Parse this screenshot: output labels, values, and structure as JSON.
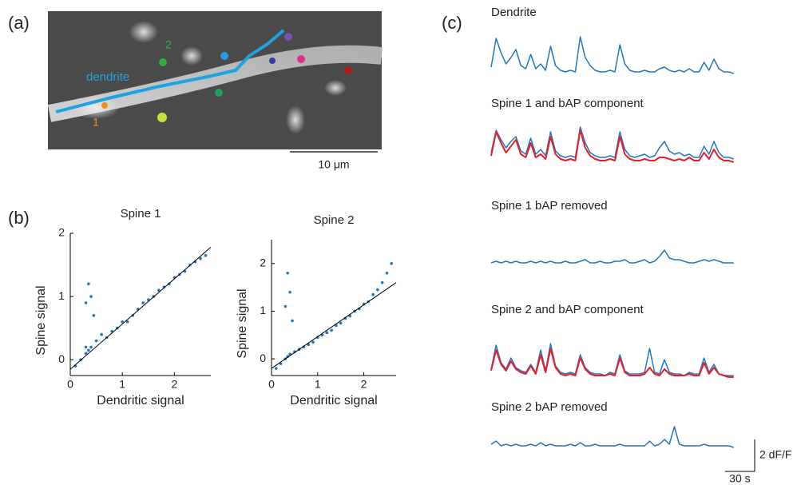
{
  "figure": {
    "panel_labels": [
      "(a)",
      "(b)",
      "(c)"
    ],
    "image_labels": {
      "dendrite": "dendrite",
      "spine1": "1",
      "spine2": "2"
    },
    "image_scale_bar": "10 μm"
  },
  "chart_data": [
    {
      "type": "scatter",
      "title": "Spine 1",
      "xlabel": "Dendritic signal",
      "ylabel": "Spine signal",
      "color": "#1f77c4",
      "xlim": [
        0,
        2.7
      ],
      "ylim": [
        -0.25,
        2
      ],
      "xticks": [
        0,
        1,
        2
      ],
      "yticks": [
        0,
        1,
        2
      ],
      "x": [
        0.1,
        0.2,
        0.3,
        0.3,
        0.35,
        0.4,
        0.5,
        0.6,
        0.7,
        0.8,
        0.9,
        1.0,
        1.1,
        1.2,
        1.3,
        1.4,
        1.5,
        1.6,
        1.7,
        1.8,
        1.9,
        2.0,
        2.1,
        2.2,
        2.3,
        2.4,
        2.5,
        2.6,
        0.3,
        0.35,
        0.4,
        0.45
      ],
      "values": [
        -0.1,
        0.0,
        0.1,
        0.2,
        0.15,
        0.2,
        0.3,
        0.4,
        0.35,
        0.45,
        0.5,
        0.6,
        0.6,
        0.7,
        0.8,
        0.9,
        0.95,
        1.0,
        1.1,
        1.15,
        1.2,
        1.3,
        1.35,
        1.4,
        1.5,
        1.55,
        1.6,
        1.65,
        0.9,
        1.2,
        1.0,
        0.7
      ],
      "fit": {
        "color": "#000000",
        "x": [
          0,
          2.7
        ],
        "values": [
          -0.15,
          1.78
        ]
      }
    },
    {
      "type": "scatter",
      "title": "Spine 2",
      "xlabel": "Dendritic signal",
      "ylabel": "Spine signal",
      "color": "#1f77c4",
      "xlim": [
        0,
        2.7
      ],
      "ylim": [
        -0.35,
        2.5
      ],
      "xticks": [
        0,
        1,
        2
      ],
      "yticks": [
        0,
        1,
        2
      ],
      "x": [
        0.1,
        0.2,
        0.3,
        0.35,
        0.4,
        0.5,
        0.6,
        0.7,
        0.8,
        0.9,
        1.0,
        1.1,
        1.2,
        1.3,
        1.4,
        1.5,
        1.6,
        1.7,
        1.8,
        1.9,
        2.0,
        2.1,
        2.2,
        2.3,
        2.4,
        2.5,
        2.6,
        0.3,
        0.35,
        0.4,
        0.45
      ],
      "values": [
        -0.2,
        -0.1,
        0.0,
        0.05,
        0.1,
        0.15,
        0.2,
        0.25,
        0.3,
        0.35,
        0.45,
        0.5,
        0.55,
        0.6,
        0.7,
        0.75,
        0.85,
        0.9,
        1.0,
        1.05,
        1.15,
        1.2,
        1.35,
        1.45,
        1.6,
        1.8,
        2.0,
        1.1,
        1.8,
        1.4,
        0.8
      ],
      "fit": {
        "color": "#000000",
        "x": [
          0,
          2.7
        ],
        "values": [
          -0.2,
          1.6
        ]
      }
    },
    {
      "type": "line",
      "xlim": [
        0,
        250
      ],
      "x": [
        0,
        5,
        10,
        15,
        20,
        25,
        30,
        35,
        40,
        45,
        50,
        55,
        60,
        65,
        70,
        75,
        80,
        85,
        90,
        95,
        100,
        105,
        110,
        115,
        120,
        125,
        130,
        135,
        140,
        145,
        150,
        155,
        160,
        165,
        170,
        175,
        180,
        185,
        190,
        195,
        200,
        205,
        210,
        215,
        220,
        225,
        230,
        235,
        240,
        245
      ],
      "yscale": {
        "value": 2,
        "label": "2 dF/F"
      },
      "xscale": {
        "value": 30,
        "label": "30 s"
      },
      "series": [
        {
          "name": "Dendrite",
          "color": "#1f77c4",
          "values": [
            0.4,
            2.2,
            1.3,
            0.6,
            1.0,
            1.5,
            0.5,
            0.3,
            1.2,
            0.3,
            0.6,
            0.2,
            1.7,
            0.5,
            0.2,
            0.1,
            0.2,
            0.1,
            2.3,
            1.0,
            0.5,
            0.2,
            0.1,
            0.1,
            0.2,
            0.1,
            1.8,
            0.6,
            0.2,
            0.1,
            0.1,
            0.2,
            0.1,
            0.1,
            0.3,
            0.4,
            0.2,
            0.1,
            0.2,
            0.1,
            0.3,
            0.1,
            0.1,
            0.7,
            0.2,
            0.9,
            0.3,
            0.1,
            0.1,
            0.0
          ]
        },
        {
          "name": "Spine 1 and bAP component",
          "color": "#1f77c4",
          "values": [
            0.6,
            2.0,
            1.4,
            0.9,
            1.3,
            1.6,
            0.7,
            0.5,
            1.5,
            0.5,
            0.8,
            0.4,
            1.9,
            0.7,
            0.4,
            0.3,
            0.4,
            0.3,
            2.2,
            1.2,
            0.6,
            0.4,
            0.3,
            0.3,
            0.4,
            0.3,
            1.9,
            0.8,
            0.4,
            0.3,
            0.4,
            0.5,
            0.3,
            0.4,
            0.9,
            1.3,
            0.7,
            0.5,
            0.6,
            0.4,
            0.5,
            0.3,
            0.3,
            1.0,
            0.5,
            1.3,
            0.6,
            0.3,
            0.3,
            0.2
          ],
          "overlay": {
            "color": "#e8202a",
            "values": [
              0.4,
              1.9,
              1.2,
              0.6,
              1.0,
              1.4,
              0.5,
              0.3,
              1.2,
              0.3,
              0.5,
              0.2,
              1.6,
              0.5,
              0.2,
              0.1,
              0.2,
              0.1,
              2.0,
              0.9,
              0.4,
              0.2,
              0.1,
              0.1,
              0.2,
              0.1,
              1.6,
              0.5,
              0.2,
              0.1,
              0.1,
              0.2,
              0.1,
              0.1,
              0.3,
              0.3,
              0.2,
              0.1,
              0.2,
              0.1,
              0.3,
              0.1,
              0.1,
              0.6,
              0.2,
              0.8,
              0.3,
              0.1,
              0.1,
              0.0
            ]
          }
        },
        {
          "name": "Spine 1 bAP removed",
          "color": "#1f77c4",
          "values": [
            0.1,
            0.2,
            0.1,
            0.2,
            0.1,
            0.2,
            0.1,
            0.1,
            0.2,
            0.1,
            0.2,
            0.1,
            0.2,
            0.1,
            0.1,
            0.2,
            0.1,
            0.1,
            0.2,
            0.3,
            0.1,
            0.1,
            0.2,
            0.1,
            0.1,
            0.2,
            0.2,
            0.3,
            0.1,
            0.1,
            0.2,
            0.3,
            0.1,
            0.2,
            0.5,
            0.9,
            0.4,
            0.3,
            0.3,
            0.2,
            0.1,
            0.1,
            0.2,
            0.3,
            0.2,
            0.3,
            0.2,
            0.1,
            0.1,
            0.1
          ]
        },
        {
          "name": "Spine 2 and bAP component",
          "color": "#1f77c4",
          "values": [
            0.5,
            2.0,
            0.9,
            0.5,
            1.2,
            0.6,
            0.4,
            0.3,
            0.8,
            0.3,
            1.7,
            0.4,
            2.1,
            0.7,
            0.3,
            0.2,
            0.3,
            0.2,
            1.4,
            0.6,
            0.3,
            0.2,
            0.2,
            0.1,
            0.3,
            0.2,
            1.4,
            0.4,
            0.2,
            0.2,
            0.2,
            0.3,
            1.8,
            0.3,
            0.2,
            1.1,
            0.3,
            0.2,
            0.2,
            0.1,
            0.3,
            0.2,
            0.2,
            1.2,
            0.3,
            0.8,
            0.2,
            0.1,
            0.1,
            0.1
          ],
          "overlay": {
            "color": "#e8202a",
            "values": [
              0.4,
              1.7,
              0.8,
              0.4,
              1.0,
              0.5,
              0.3,
              0.2,
              0.7,
              0.2,
              1.4,
              0.3,
              1.8,
              0.6,
              0.2,
              0.1,
              0.2,
              0.1,
              1.2,
              0.5,
              0.2,
              0.1,
              0.1,
              0.1,
              0.2,
              0.1,
              1.2,
              0.3,
              0.1,
              0.1,
              0.1,
              0.2,
              0.6,
              0.2,
              0.1,
              0.5,
              0.2,
              0.1,
              0.1,
              0.1,
              0.2,
              0.1,
              0.1,
              0.9,
              0.2,
              0.6,
              0.2,
              0.1,
              0.0,
              0.0
            ]
          }
        },
        {
          "name": "Spine 2 bAP removed",
          "color": "#1f77c4",
          "values": [
            0.3,
            0.5,
            0.2,
            0.3,
            0.2,
            0.3,
            0.2,
            0.2,
            0.3,
            0.2,
            0.4,
            0.2,
            0.3,
            0.2,
            0.2,
            0.2,
            0.3,
            0.2,
            0.4,
            0.2,
            0.2,
            0.3,
            0.2,
            0.2,
            0.2,
            0.2,
            0.3,
            0.2,
            0.2,
            0.2,
            0.2,
            0.2,
            0.5,
            0.2,
            0.3,
            0.6,
            0.3,
            1.4,
            0.3,
            0.2,
            0.2,
            0.2,
            0.2,
            0.3,
            0.2,
            0.2,
            0.2,
            0.2,
            0.2,
            0.1
          ]
        }
      ]
    }
  ]
}
